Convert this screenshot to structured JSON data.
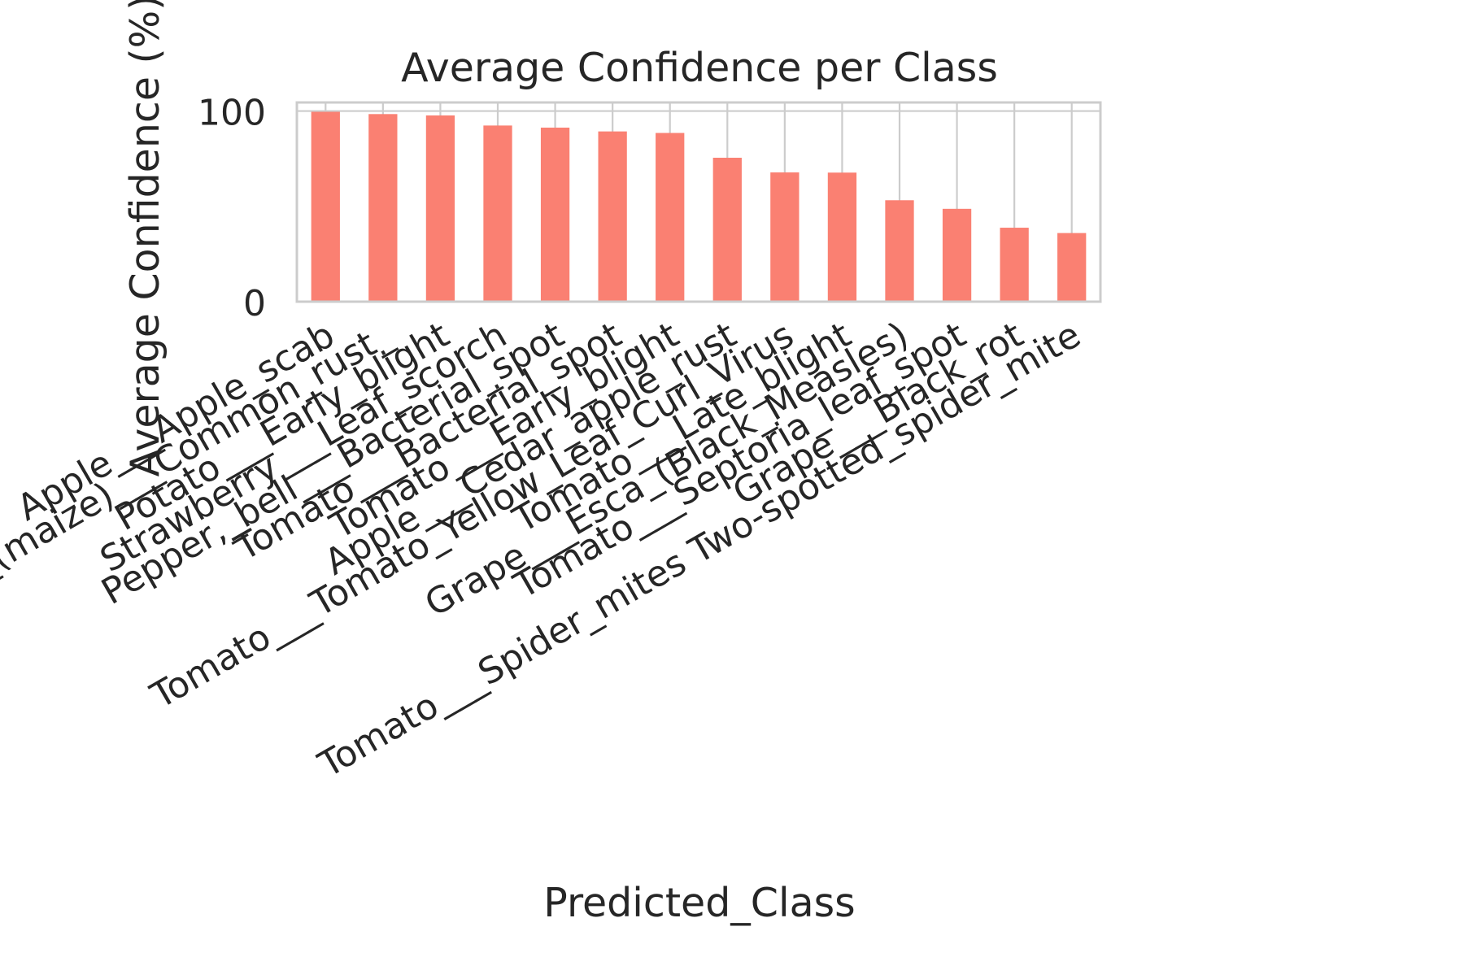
{
  "chart_data": {
    "type": "bar",
    "title": "Average Confidence per Class",
    "xlabel": "Predicted_Class",
    "ylabel": "Average Confidence (%)",
    "ylim": [
      0,
      104.5
    ],
    "yticks": [
      0,
      100
    ],
    "grid": true,
    "legend": "none",
    "colors": {
      "bar": "#fa8072",
      "grid": "#cccccc",
      "spine": "#cccccc",
      "text": "#262626"
    },
    "categories": [
      "Apple___Apple_scab",
      "Corn_(maize)___Common_rust_",
      "Potato___Early_blight",
      "Strawberry___Leaf_scorch",
      "Pepper,_bell___Bacterial_spot",
      "Tomato___Bacterial_spot",
      "Tomato___Early_blight",
      "Apple___Cedar_apple_rust",
      "Tomato___Tomato_Yellow_Leaf_Curl_Virus",
      "Tomato___Late_blight",
      "Grape___Esca_(Black_Measles)",
      "Tomato___Septoria_leaf_spot",
      "Grape___Black_rot",
      "Tomato___Spider_mites Two-spotted_spider_mite"
    ],
    "values": [
      99.6,
      98.4,
      97.7,
      92.4,
      91.3,
      89.3,
      88.5,
      75.5,
      67.8,
      67.7,
      53.2,
      48.7,
      38.8,
      36.0
    ]
  }
}
